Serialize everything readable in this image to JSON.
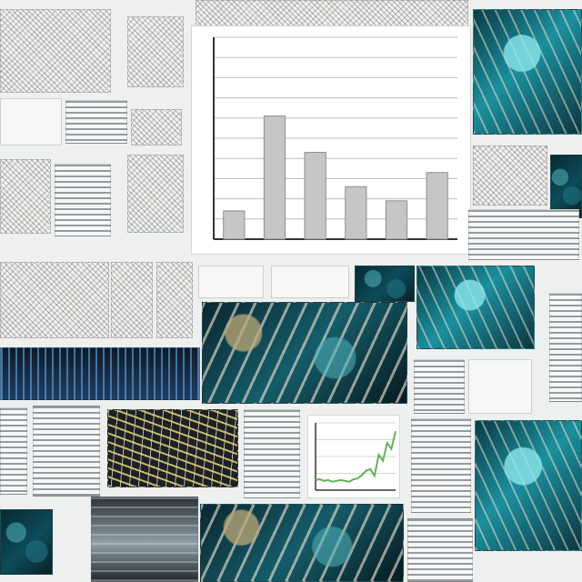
{
  "collage": {
    "panels": [
      {
        "name": "sketch-panel-top-left"
      },
      {
        "name": "sketch-panel-top-mid"
      },
      {
        "name": "sketch-panel-top-row"
      },
      {
        "name": "chart-panel-main"
      },
      {
        "name": "teal-vein-panel-top-right"
      },
      {
        "name": "paper-panel-left-middle"
      },
      {
        "name": "teal-vein-panel-center"
      },
      {
        "name": "teal-vein-panel-right"
      },
      {
        "name": "data-panel-left-lower"
      },
      {
        "name": "gold-vein-panel"
      },
      {
        "name": "line-chart-panel"
      },
      {
        "name": "teal-vein-panel-bottom"
      },
      {
        "name": "photo-panel-bottom"
      },
      {
        "name": "teal-vein-panel-bottom-right"
      }
    ]
  },
  "chart_data": [
    {
      "type": "bar",
      "categories": [
        "",
        "",
        "",
        "",
        "",
        ""
      ],
      "values": [
        14,
        61,
        43,
        26,
        19,
        33
      ],
      "ylim": [
        0,
        100
      ],
      "grid": true,
      "colors": {
        "bar": "#c6c6c6",
        "edge": "#8d8d8d",
        "axis": "#333333",
        "grid": "#bdbdbd"
      }
    },
    {
      "type": "line",
      "x": [
        0,
        1,
        2,
        3,
        4,
        5,
        6,
        7,
        8,
        9,
        10,
        11,
        12,
        13,
        14,
        15,
        16,
        17,
        18,
        19
      ],
      "y": [
        12,
        13,
        11,
        12,
        10,
        11,
        12,
        11,
        10,
        13,
        14,
        18,
        23,
        25,
        17,
        42,
        35,
        56,
        49,
        70
      ],
      "ylim": [
        0,
        80
      ],
      "grid": true,
      "colors": {
        "line": "#63b05a",
        "axis": "#333333",
        "grid": "#d7d7d7"
      }
    }
  ]
}
